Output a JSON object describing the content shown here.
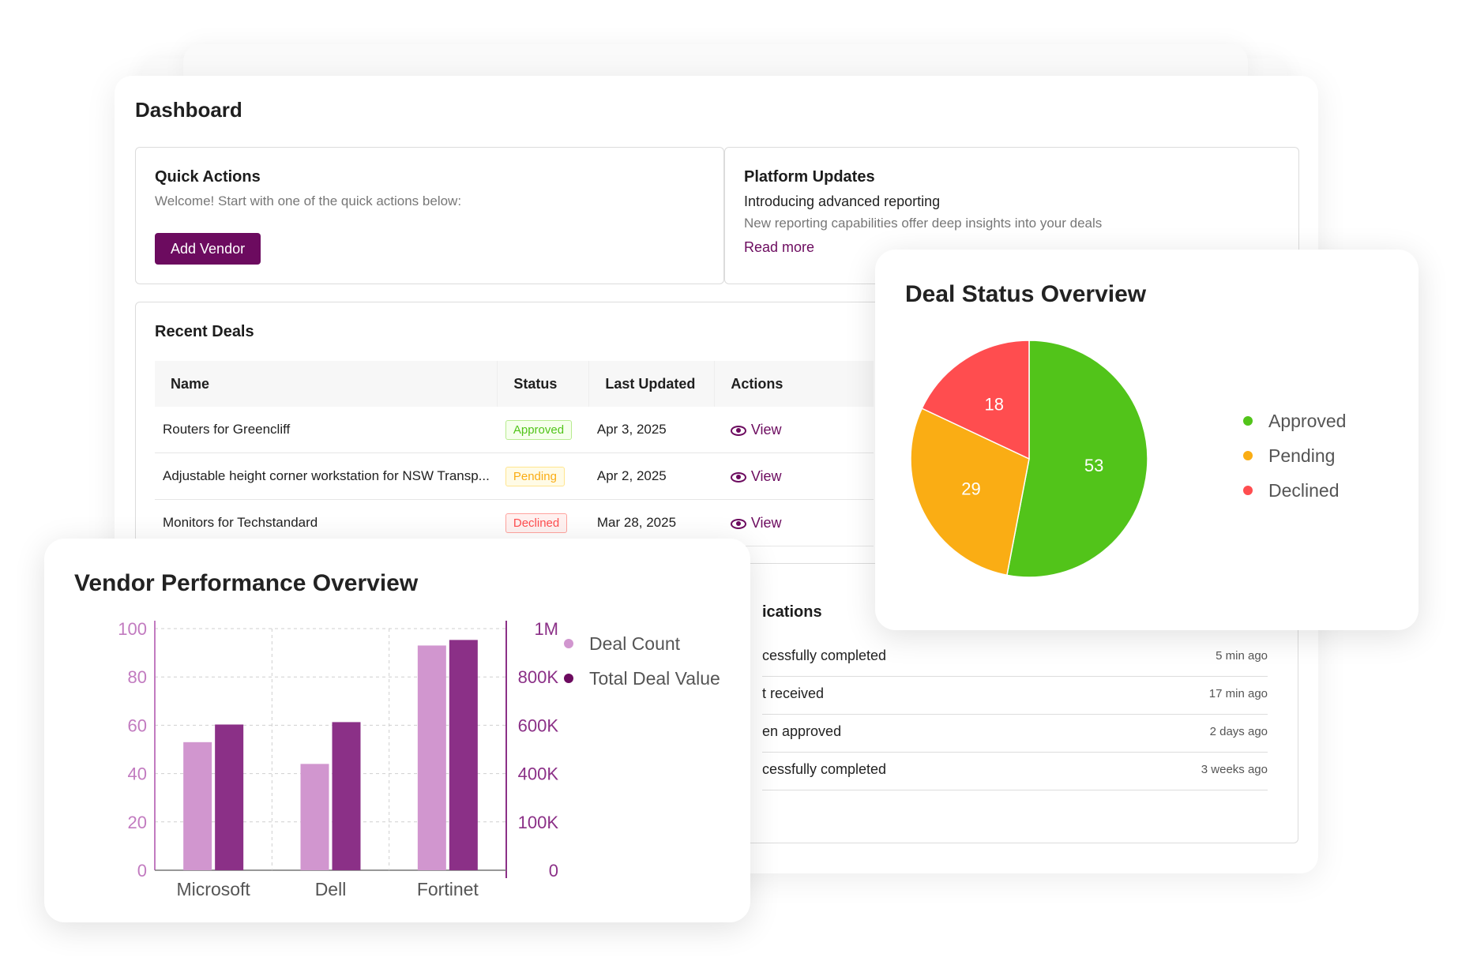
{
  "dashboard": {
    "title": "Dashboard",
    "quick_actions": {
      "title": "Quick Actions",
      "welcome": "Welcome! Start with one of the quick actions below:",
      "button": "Add Vendor"
    },
    "platform_updates": {
      "title": "Platform Updates",
      "headline": "Introducing advanced reporting",
      "description": "New reporting capabilities offer deep insights into your deals",
      "link": "Read more"
    },
    "recent_deals": {
      "title": "Recent Deals",
      "columns": [
        "Name",
        "Status",
        "Last Updated",
        "Actions"
      ],
      "rows": [
        {
          "name": "Routers for Greencliff",
          "status": "Approved",
          "updated": "Apr 3, 2025",
          "action": "View"
        },
        {
          "name": "Adjustable height corner workstation for NSW Transp...",
          "status": "Pending",
          "updated": "Apr 2, 2025",
          "action": "View"
        },
        {
          "name": "Monitors for Techstandard",
          "status": "Declined",
          "updated": "Mar 28, 2025",
          "action": "View"
        }
      ]
    },
    "notifications": {
      "title_fragment": "ications",
      "items": [
        {
          "text": "cessfully completed",
          "time": "5 min ago"
        },
        {
          "text": "t received",
          "time": "17 min ago"
        },
        {
          "text": "en approved",
          "time": "2 days ago"
        },
        {
          "text": "cessfully completed",
          "time": "3 weeks ago"
        }
      ]
    }
  },
  "colors": {
    "brand": "#6c0b5f",
    "approved": "#52c41a",
    "pending": "#faad14",
    "declined": "#ff4d4f",
    "deal_count": "#d196cf",
    "deal_value": "#8b3087"
  },
  "pie_chart": {
    "title": "Deal Status Overview",
    "chart_data": {
      "type": "pie",
      "labels": [
        "Approved",
        "Pending",
        "Declined"
      ],
      "values": [
        53,
        29,
        18
      ],
      "legend": "right"
    }
  },
  "bar_chart": {
    "title": "Vendor Performance Overview",
    "chart_data": {
      "type": "bar",
      "categories": [
        "Microsoft",
        "Dell",
        "Fortinet"
      ],
      "series": [
        {
          "name": "Deal Count",
          "axis": "left",
          "values": [
            53,
            44,
            93
          ]
        },
        {
          "name": "Total Deal Value",
          "axis": "right",
          "values": [
            603000,
            613000,
            953000
          ]
        }
      ],
      "y_left": {
        "min": 0,
        "max": 100,
        "ticks": [
          0,
          20,
          40,
          60,
          80,
          100
        ]
      },
      "y_right": {
        "tick_labels": [
          "0",
          "100K",
          "400K",
          "600K",
          "800K",
          "1M"
        ]
      },
      "legend": "right",
      "grid": true
    }
  }
}
